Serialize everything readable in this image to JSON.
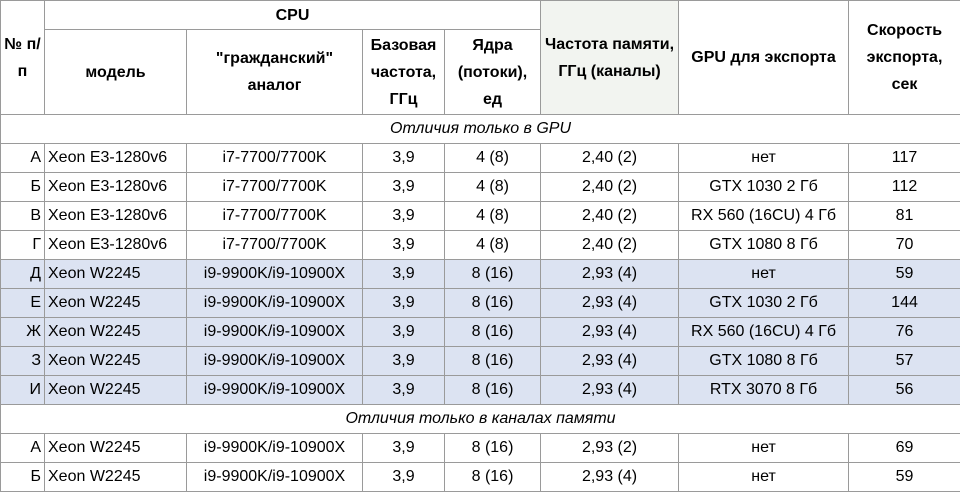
{
  "table": {
    "header": {
      "num": "№ п/п",
      "cpu": "CPU",
      "cpu_columns": [
        "модель",
        "\"гражданский\" аналог",
        "Базовая частота, ГГц",
        "Ядра (потоки), ед"
      ],
      "memory": "Частота памяти, ГГц (каналы)",
      "gpu": "GPU для экспорта",
      "speed": "Скорость экспорта, сек"
    },
    "sections": [
      {
        "title": "Отличия только в GPU",
        "rows": [
          [
            "А",
            "Xeon E3-1280v6",
            "i7-7700/7700K",
            "3,9",
            "4 (8)",
            "2,40 (2)",
            "нет",
            117
          ],
          [
            "Б",
            "Xeon E3-1280v6",
            "i7-7700/7700K",
            "3,9",
            "4 (8)",
            "2,40 (2)",
            "GTX 1030 2 Гб",
            112
          ],
          [
            "В",
            "Xeon E3-1280v6",
            "i7-7700/7700K",
            "3,9",
            "4 (8)",
            "2,40 (2)",
            "RX 560 (16CU) 4 Гб",
            81
          ],
          [
            "Г",
            "Xeon E3-1280v6",
            "i7-7700/7700K",
            "3,9",
            "4 (8)",
            "2,40 (2)",
            "GTX 1080 8 Гб",
            70
          ],
          [
            "Д",
            "Xeon W2245",
            "i9-9900K/i9-10900X",
            "3,9",
            "8 (16)",
            "2,93 (4)",
            "нет",
            59
          ],
          [
            "Е",
            "Xeon W2245",
            "i9-9900K/i9-10900X",
            "3,9",
            "8 (16)",
            "2,93 (4)",
            "GTX 1030 2 Гб",
            144
          ],
          [
            "Ж",
            "Xeon W2245",
            "i9-9900K/i9-10900X",
            "3,9",
            "8 (16)",
            "2,93 (4)",
            "RX 560 (16CU) 4 Гб",
            76
          ],
          [
            "З",
            "Xeon W2245",
            "i9-9900K/i9-10900X",
            "3,9",
            "8 (16)",
            "2,93 (4)",
            "GTX 1080 8 Гб",
            57
          ],
          [
            "И",
            "Xeon W2245",
            "i9-9900K/i9-10900X",
            "3,9",
            "8 (16)",
            "2,93 (4)",
            "RTX 3070 8 Гб",
            56
          ]
        ]
      },
      {
        "title": "Отличия только в каналах памяти",
        "rows": [
          [
            "А",
            "Xeon W2245",
            "i9-9900K/i9-10900X",
            "3,9",
            "8 (16)",
            "2,93 (2)",
            "нет",
            69
          ],
          [
            "Б",
            "Xeon W2245",
            "i9-9900K/i9-10900X",
            "3,9",
            "8 (16)",
            "2,93 (4)",
            "нет",
            59
          ]
        ]
      }
    ]
  }
}
